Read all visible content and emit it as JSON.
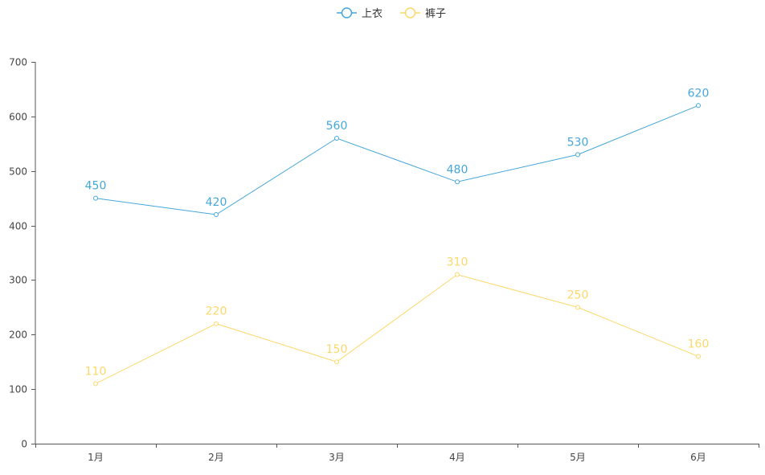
{
  "chart_data": {
    "type": "line",
    "title": "",
    "xlabel": "",
    "ylabel": "",
    "categories": [
      "1月",
      "2月",
      "3月",
      "4月",
      "5月",
      "6月"
    ],
    "series": [
      {
        "name": "上衣",
        "color": "#46a6d9",
        "values": [
          450,
          420,
          560,
          480,
          530,
          620
        ]
      },
      {
        "name": "裤子",
        "color": "#fcd86a",
        "values": [
          110,
          220,
          150,
          310,
          250,
          160
        ]
      }
    ],
    "ylim": [
      0,
      700
    ],
    "yticks": [
      0,
      100,
      200,
      300,
      400,
      500,
      600,
      700
    ],
    "grid": false,
    "legend_position": "top-center",
    "data_labels": true
  },
  "legend": {
    "items": [
      {
        "label": "上衣",
        "color": "#46a6d9"
      },
      {
        "label": "裤子",
        "color": "#fcd86a"
      }
    ]
  },
  "colors": {
    "axis": "#555555",
    "tick_text": "#444444"
  }
}
